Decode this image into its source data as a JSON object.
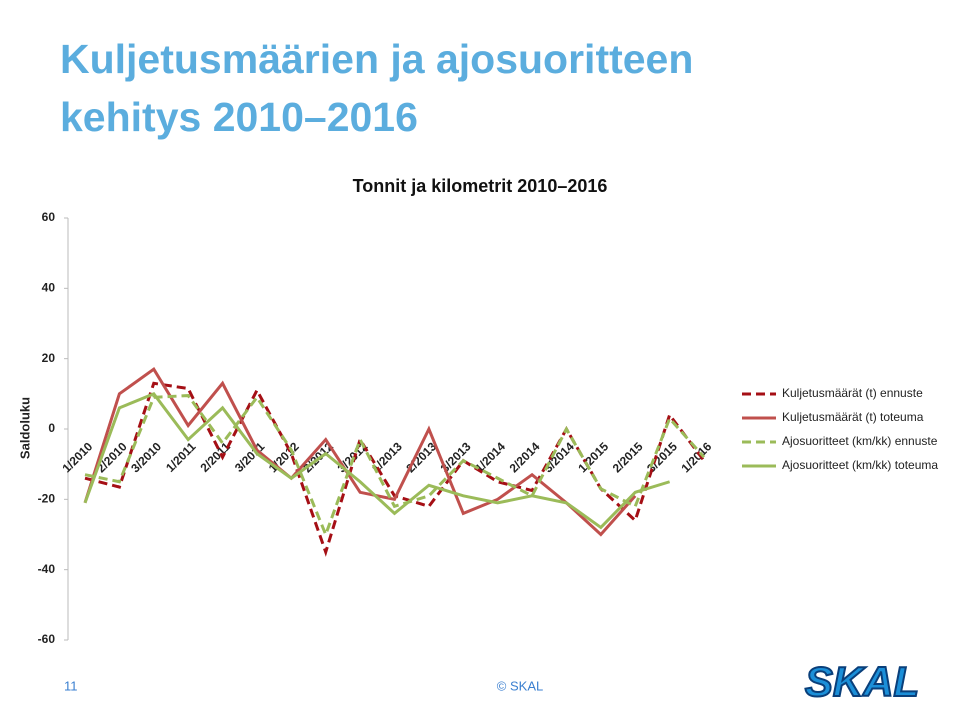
{
  "title": [
    "Kuljetusmäärien ja ajosuoritteen",
    "kehitys 2010–2016"
  ],
  "chart_data": {
    "type": "line",
    "title": "Tonnit ja kilometrit 2010–2016",
    "y_label": "Saldoluku",
    "categories": [
      "1/2010",
      "2/2010",
      "3/2010",
      "1/2011",
      "2/2011",
      "3/2011",
      "1/2012",
      "2/2012",
      "3/2012",
      "1/2013",
      "2/2013",
      "3/2013",
      "1/2014",
      "2/2014",
      "3/2014",
      "1/2015",
      "2/2015",
      "3/2015",
      "1/2016"
    ],
    "ylim": [
      -60,
      60
    ],
    "yticks": [
      -60,
      -40,
      -20,
      0,
      20,
      40,
      60
    ],
    "legend": "right",
    "series": [
      {
        "name": "Kuljetusmäärät (t) ennuste",
        "color": "#a50f15",
        "style": "dashed",
        "values": [
          -14,
          -16.5,
          13,
          11.5,
          -8,
          11,
          -7,
          -35,
          -3,
          -19,
          -22,
          -9,
          -15,
          -17.5,
          0,
          -17,
          -26,
          4,
          -9
        ]
      },
      {
        "name": "Kuljetusmäärät (t) toteuma",
        "color": "#c0504d",
        "style": "solid",
        "values": [
          -21,
          10,
          17,
          1,
          13,
          -6,
          -14,
          -3,
          -18,
          -20,
          0,
          -24,
          -20,
          -13,
          -21,
          -30,
          -19,
          null,
          null
        ]
      },
      {
        "name": "Ajosuoritteet (km/kk) ennuste",
        "color": "#9bbb59",
        "style": "dashed",
        "values": [
          -13,
          -15,
          9,
          9.5,
          -4,
          9,
          -6,
          -30,
          -3,
          -22,
          -19,
          -9,
          -14,
          -19,
          0,
          -17,
          -22,
          3,
          -8
        ]
      },
      {
        "name": "Ajosuoritteet (km/kk) toteuma",
        "color": "#9bbb59",
        "style": "solid",
        "values": [
          -21,
          6,
          10,
          -3,
          6,
          -7,
          -14,
          -7,
          -15,
          -24,
          -16,
          -19,
          -21,
          -19,
          -21,
          -28,
          -18,
          -15,
          null
        ]
      }
    ]
  },
  "footer": {
    "page": "11",
    "copyright": "© SKAL"
  },
  "logo": "SKAL"
}
